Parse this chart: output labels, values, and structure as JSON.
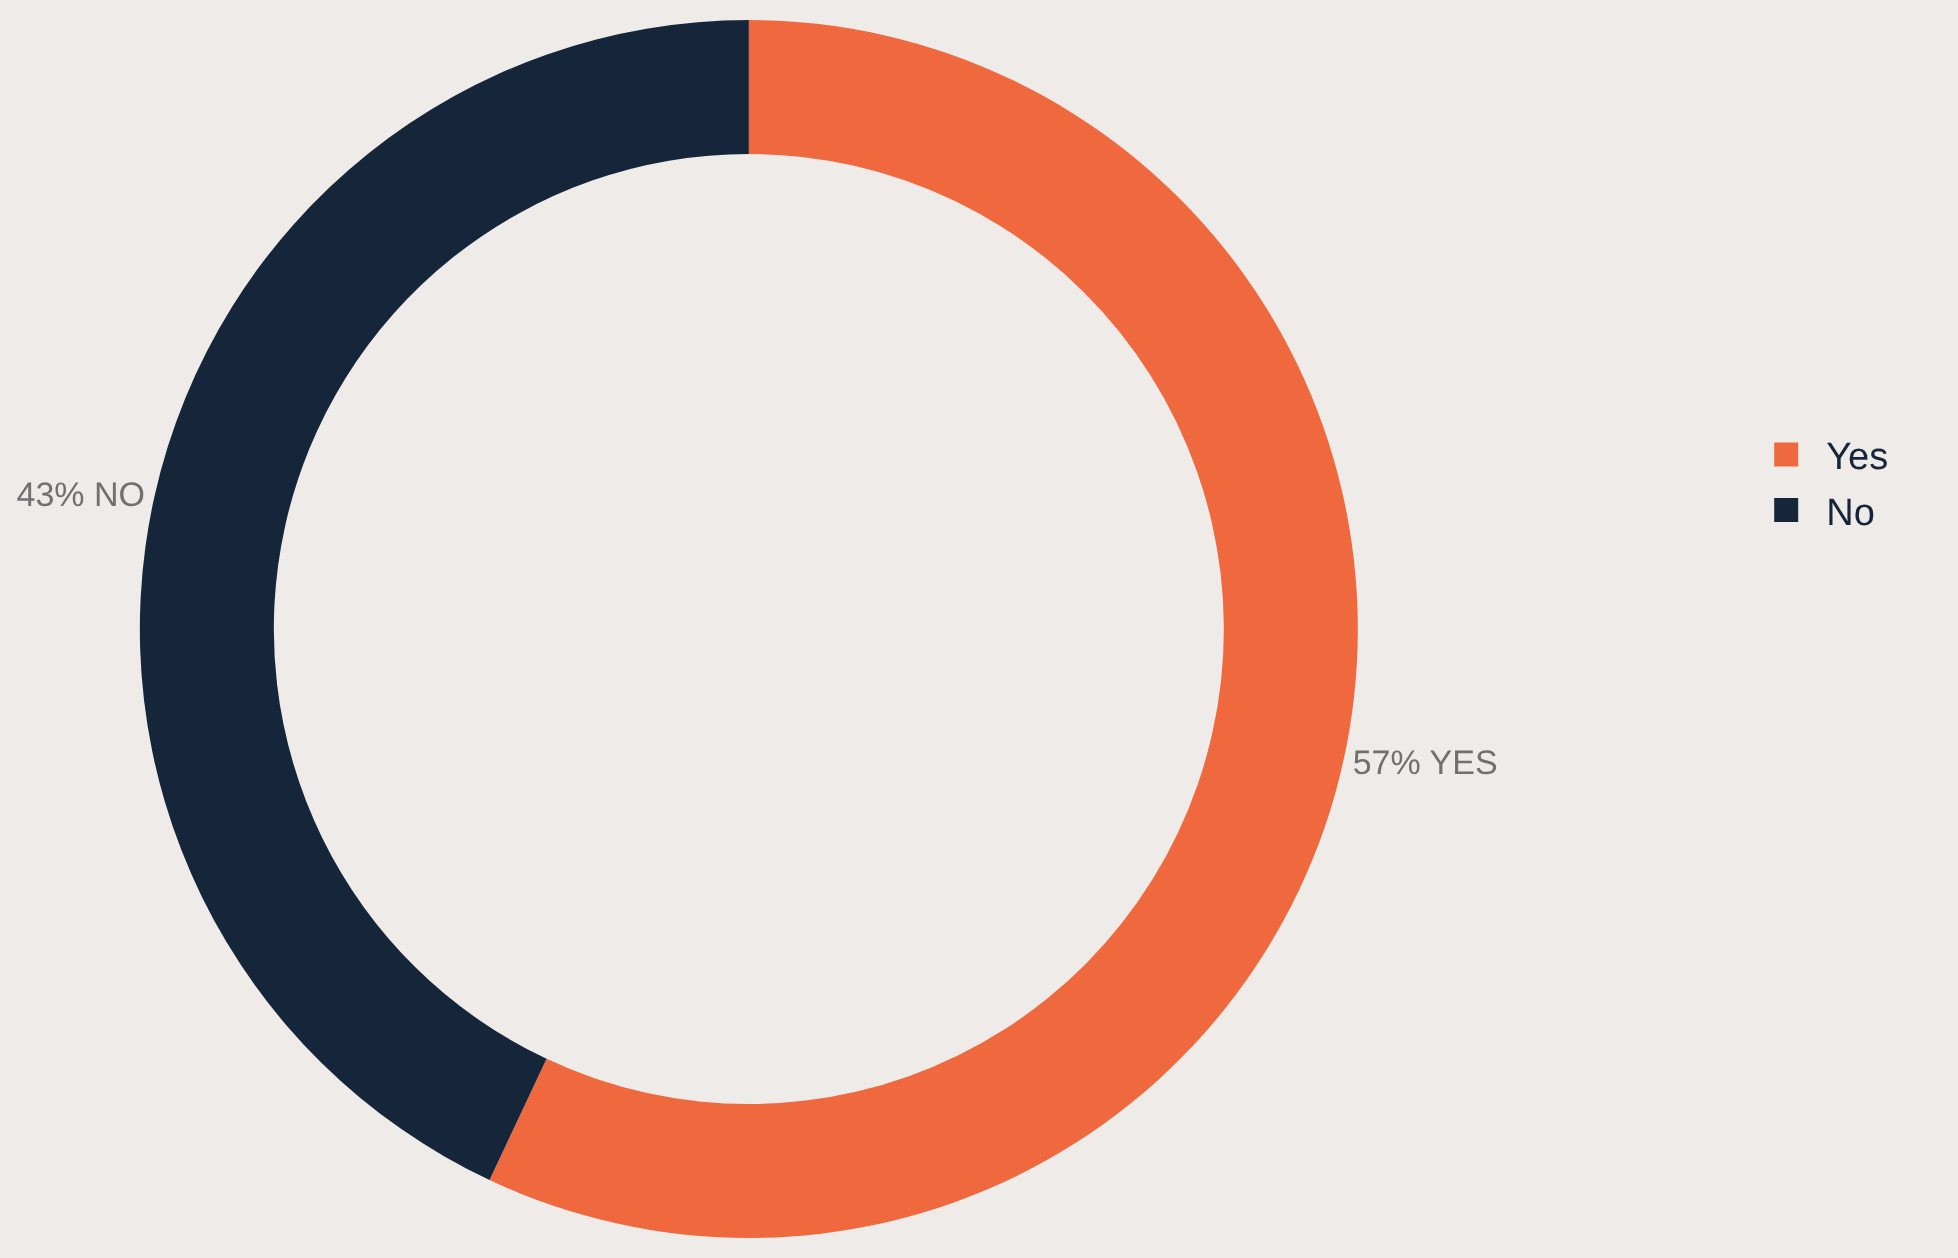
{
  "chart_data": {
    "type": "donut",
    "categories": [
      "Yes",
      "No"
    ],
    "values": [
      57,
      43
    ],
    "colors": [
      "#f0693e",
      "#16263a"
    ],
    "value_labels": [
      "57% YES",
      "43% NO"
    ],
    "legend": "right"
  }
}
